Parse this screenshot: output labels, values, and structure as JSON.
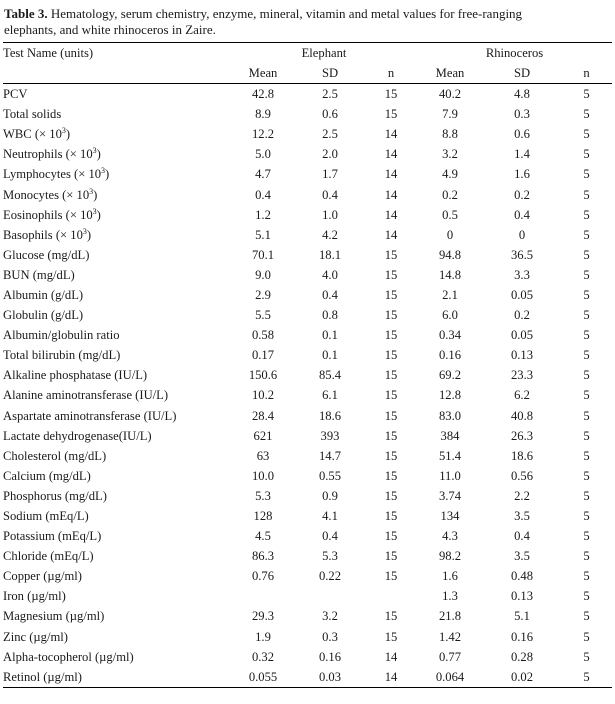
{
  "caption": {
    "label": "Table 3.",
    "line1": "Hematology, serum chemistry, enzyme, mineral, vitamin and metal values for free-ranging",
    "line2": "elephants, and white rhinoceros in Zaire."
  },
  "header": {
    "test_name": "Test Name (units)",
    "group1": "Elephant",
    "group2": "Rhinoceros",
    "mean": "Mean",
    "sd": "SD",
    "n": "n"
  },
  "rows": [
    {
      "name": "PCV",
      "em": "42.8",
      "esd": "2.5",
      "en": "15",
      "rm": "40.2",
      "rsd": "4.8",
      "rn": "5"
    },
    {
      "name": "Total solids",
      "em": "8.9",
      "esd": "0.6",
      "en": "15",
      "rm": "7.9",
      "rsd": "0.3",
      "rn": "5"
    },
    {
      "name": "WBC (× 10",
      "sup": "3",
      "tail": ")",
      "em": "12.2",
      "esd": "2.5",
      "en": "14",
      "rm": "8.8",
      "rsd": "0.6",
      "rn": "5"
    },
    {
      "name": "Neutrophils  (× 10",
      "sup": "3",
      "tail": ")",
      "em": "5.0",
      "esd": "2.0",
      "en": "14",
      "rm": "3.2",
      "rsd": "1.4",
      "rn": "5"
    },
    {
      "name": "Lymphocytes  (× 10",
      "sup": "3",
      "tail": ")",
      "em": "4.7",
      "esd": "1.7",
      "en": "14",
      "rm": "4.9",
      "rsd": "1.6",
      "rn": "5"
    },
    {
      "name": "Monocytes  (× 10",
      "sup": "3",
      "tail": ")",
      "em": "0.4",
      "esd": "0.4",
      "en": "14",
      "rm": "0.2",
      "rsd": "0.2",
      "rn": "5"
    },
    {
      "name": "Eosinophils  (× 10",
      "sup": "3",
      "tail": ")",
      "em": "1.2",
      "esd": "1.0",
      "en": "14",
      "rm": "0.5",
      "rsd": "0.4",
      "rn": "5"
    },
    {
      "name": "Basophils  (× 10",
      "sup": "3",
      "tail": ")",
      "em": "5.1",
      "esd": "4.2",
      "en": "14",
      "rm": "0",
      "rsd": "0",
      "rn": "5"
    },
    {
      "name": "Glucose (mg/dL)",
      "em": "70.1",
      "esd": "18.1",
      "en": "15",
      "rm": "94.8",
      "rsd": "36.5",
      "rn": "5"
    },
    {
      "name": "BUN (mg/dL)",
      "em": "9.0",
      "esd": "4.0",
      "en": "15",
      "rm": "14.8",
      "rsd": "3.3",
      "rn": "5"
    },
    {
      "name": "Albumin (g/dL)",
      "em": "2.9",
      "esd": "0.4",
      "en": "15",
      "rm": "2.1",
      "rsd": "0.05",
      "rn": "5"
    },
    {
      "name": "Globulin (g/dL)",
      "em": "5.5",
      "esd": "0.8",
      "en": "15",
      "rm": "6.0",
      "rsd": "0.2",
      "rn": "5"
    },
    {
      "name": "Albumin/globulin ratio",
      "em": "0.58",
      "esd": "0.1",
      "en": "15",
      "rm": "0.34",
      "rsd": "0.05",
      "rn": "5"
    },
    {
      "name": "Total bilirubin (mg/dL)",
      "em": "0.17",
      "esd": "0.1",
      "en": "15",
      "rm": "0.16",
      "rsd": "0.13",
      "rn": "5"
    },
    {
      "name": "Alkaline phosphatase (IU/L)",
      "em": "150.6",
      "esd": "85.4",
      "en": "15",
      "rm": "69.2",
      "rsd": "23.3",
      "rn": "5"
    },
    {
      "name": "Alanine aminotransferase (IU/L)",
      "em": "10.2",
      "esd": "6.1",
      "en": "15",
      "rm": "12.8",
      "rsd": "6.2",
      "rn": "5"
    },
    {
      "name": "Aspartate aminotransferase (IU/L)",
      "em": "28.4",
      "esd": "18.6",
      "en": "15",
      "rm": "83.0",
      "rsd": "40.8",
      "rn": "5"
    },
    {
      "name": "Lactate dehydrogenase(IU/L)",
      "em": "621",
      "esd": "393",
      "en": "15",
      "rm": "384",
      "rsd": "26.3",
      "rn": "5"
    },
    {
      "name": "Cholesterol (mg/dL)",
      "em": "63",
      "esd": "14.7",
      "en": "15",
      "rm": "51.4",
      "rsd": "18.6",
      "rn": "5"
    },
    {
      "name": "Calcium (mg/dL)",
      "em": "10.0",
      "esd": "0.55",
      "en": "15",
      "rm": "11.0",
      "rsd": "0.56",
      "rn": "5"
    },
    {
      "name": "Phosphorus (mg/dL)",
      "em": "5.3",
      "esd": "0.9",
      "en": "15",
      "rm": "3.74",
      "rsd": "2.2",
      "rn": "5"
    },
    {
      "name": "Sodium (mEq/L)",
      "em": "128",
      "esd": "4.1",
      "en": "15",
      "rm": "134",
      "rsd": "3.5",
      "rn": "5"
    },
    {
      "name": "Potassium (mEq/L)",
      "em": "4.5",
      "esd": "0.4",
      "en": "15",
      "rm": "4.3",
      "rsd": "0.4",
      "rn": "5"
    },
    {
      "name": "Chloride (mEq/L)",
      "em": "86.3",
      "esd": "5.3",
      "en": "15",
      "rm": "98.2",
      "rsd": "3.5",
      "rn": "5"
    },
    {
      "name": "Copper (µg/ml)",
      "em": "0.76",
      "esd": "0.22",
      "en": "15",
      "rm": "1.6",
      "rsd": "0.48",
      "rn": "5"
    },
    {
      "name": "Iron (µg/ml)",
      "em": "",
      "esd": "",
      "en": "",
      "rm": "1.3",
      "rsd": "0.13",
      "rn": "5"
    },
    {
      "name": "Magnesium (µg/ml)",
      "em": "29.3",
      "esd": "3.2",
      "en": "15",
      "rm": "21.8",
      "rsd": "5.1",
      "rn": "5"
    },
    {
      "name": "Zinc (µg/ml)",
      "em": "1.9",
      "esd": "0.3",
      "en": "15",
      "rm": "1.42",
      "rsd": "0.16",
      "rn": "5"
    },
    {
      "name": "Alpha-tocopherol (µg/ml)",
      "em": "0.32",
      "esd": "0.16",
      "en": "14",
      "rm": "0.77",
      "rsd": "0.28",
      "rn": "5"
    },
    {
      "name": "Retinol (µg/ml)",
      "em": "0.055",
      "esd": "0.03",
      "en": "14",
      "rm": "0.064",
      "rsd": "0.02",
      "rn": "5"
    }
  ]
}
